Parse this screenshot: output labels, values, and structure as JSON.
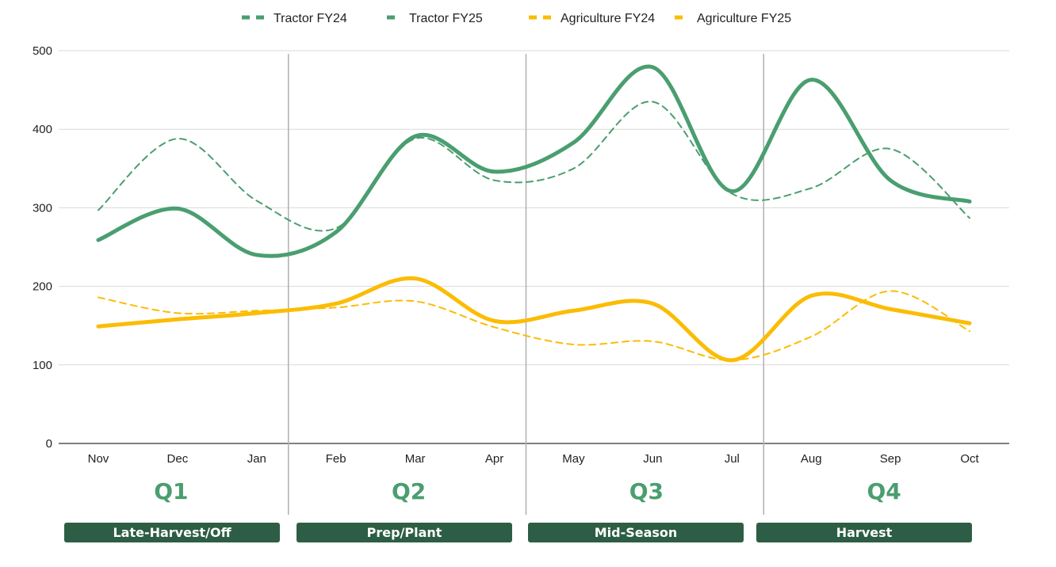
{
  "chart_data": {
    "type": "line",
    "title": "",
    "xlabel": "",
    "ylabel": "",
    "categories": [
      "Nov",
      "Dec",
      "Jan",
      "Feb",
      "Mar",
      "Apr",
      "May",
      "Jun",
      "Jul",
      "Aug",
      "Sep",
      "Oct"
    ],
    "ylim": [
      0,
      500
    ],
    "yticks": [
      "0",
      "100",
      "200",
      "300",
      "400",
      "500"
    ],
    "grid": true,
    "smooth": true,
    "legend_position": "top",
    "series": [
      {
        "name": "Tractor FY24",
        "color": "#4a9e6f",
        "style": "dashed",
        "values": [
          297,
          388,
          309,
          274,
          388,
          335,
          350,
          435,
          318,
          325,
          375,
          287
        ]
      },
      {
        "name": "Tractor FY25",
        "color": "#4a9e6f",
        "style": "solid",
        "values": [
          259,
          299,
          240,
          269,
          391,
          346,
          383,
          479,
          321,
          463,
          335,
          308
        ]
      },
      {
        "name": "Agriculture FY24",
        "color": "#fbbc04",
        "style": "dashed",
        "values": [
          186,
          166,
          169,
          173,
          181,
          148,
          126,
          130,
          106,
          136,
          194,
          143
        ]
      },
      {
        "name": "Agriculture FY25",
        "color": "#fbbc04",
        "style": "solid",
        "values": [
          149,
          158,
          166,
          178,
          210,
          156,
          169,
          178,
          106,
          188,
          171,
          153
        ]
      }
    ],
    "quarters": [
      {
        "label": "Q1",
        "season": "Late-Harvest/Off"
      },
      {
        "label": "Q2",
        "season": "Prep/Plant"
      },
      {
        "label": "Q3",
        "season": "Mid-Season"
      },
      {
        "label": "Q4",
        "season": "Harvest"
      }
    ],
    "colors": {
      "quarter_text": "#4a9e6f",
      "season_band": "#2d5e45"
    }
  }
}
